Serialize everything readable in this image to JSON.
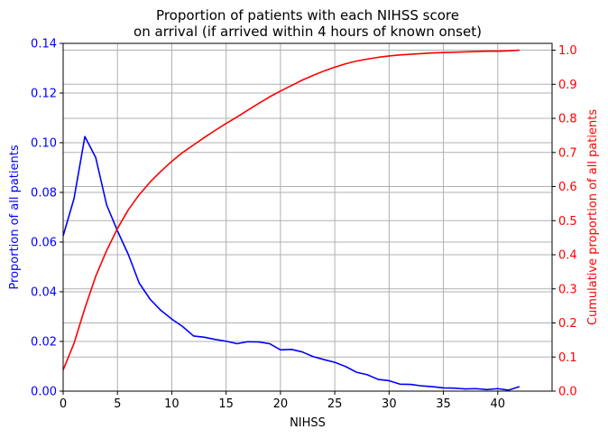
{
  "chart_data": {
    "type": "line",
    "title_line1": "Proportion of patients with each NIHSS score",
    "title_line2": "on arrival (if arrived within 4 hours of known onset)",
    "xlabel": "NIHSS",
    "ylabel_left": "Proportion of all patients",
    "ylabel_right": "Cumulative proportion of all patients",
    "xlim": [
      0,
      45
    ],
    "ylim_left": [
      0,
      0.14
    ],
    "ylim_right": [
      0,
      1.02
    ],
    "x_ticks": [
      "0",
      "5",
      "10",
      "15",
      "20",
      "25",
      "30",
      "35",
      "40"
    ],
    "y_ticks_left": [
      "0.00",
      "0.02",
      "0.04",
      "0.06",
      "0.08",
      "0.10",
      "0.12",
      "0.14"
    ],
    "y_ticks_right": [
      "0.0",
      "0.1",
      "0.2",
      "0.3",
      "0.4",
      "0.5",
      "0.6",
      "0.7",
      "0.8",
      "0.9",
      "1.0"
    ],
    "grid": true,
    "series": [
      {
        "axis": "left",
        "color": "#0000ff",
        "x": [
          0,
          1,
          2,
          3,
          4,
          5,
          6,
          7,
          8,
          9,
          10,
          11,
          12,
          13,
          14,
          15,
          16,
          17,
          18,
          19,
          20,
          21,
          22,
          23,
          24,
          25,
          26,
          27,
          28,
          29,
          30,
          31,
          32,
          33,
          34,
          35,
          36,
          37,
          38,
          39,
          40,
          41,
          42
        ],
        "values": [
          0.0625,
          0.0775,
          0.1025,
          0.094,
          0.075,
          0.0645,
          0.055,
          0.0435,
          0.037,
          0.0325,
          0.029,
          0.026,
          0.0222,
          0.0217,
          0.0208,
          0.0201,
          0.0191,
          0.0199,
          0.0198,
          0.0191,
          0.0166,
          0.0168,
          0.0158,
          0.0139,
          0.0127,
          0.0116,
          0.0099,
          0.0076,
          0.0066,
          0.0047,
          0.0042,
          0.0028,
          0.0027,
          0.0021,
          0.0018,
          0.0013,
          0.0012,
          0.0009,
          0.001,
          0.0006,
          0.001,
          0.0004,
          0.0018
        ]
      },
      {
        "axis": "right",
        "color": "#ff0000",
        "x": [
          0,
          1,
          2,
          3,
          4,
          5,
          6,
          7,
          8,
          9,
          10,
          11,
          12,
          13,
          14,
          15,
          16,
          17,
          18,
          19,
          20,
          21,
          22,
          23,
          24,
          25,
          26,
          27,
          28,
          29,
          30,
          31,
          32,
          33,
          34,
          35,
          36,
          37,
          38,
          39,
          40,
          41,
          42
        ],
        "values": [
          0.062,
          0.14,
          0.243,
          0.337,
          0.412,
          0.477,
          0.532,
          0.576,
          0.613,
          0.645,
          0.674,
          0.7,
          0.722,
          0.744,
          0.765,
          0.785,
          0.804,
          0.824,
          0.844,
          0.863,
          0.88,
          0.896,
          0.912,
          0.926,
          0.939,
          0.95,
          0.96,
          0.968,
          0.974,
          0.979,
          0.983,
          0.986,
          0.988,
          0.99,
          0.992,
          0.993,
          0.994,
          0.995,
          0.996,
          0.997,
          0.997,
          0.998,
          1.0
        ]
      }
    ]
  },
  "colors": {
    "left_axis": "#0000ff",
    "right_axis": "#ff0000",
    "grid": "#b0b0b0"
  }
}
